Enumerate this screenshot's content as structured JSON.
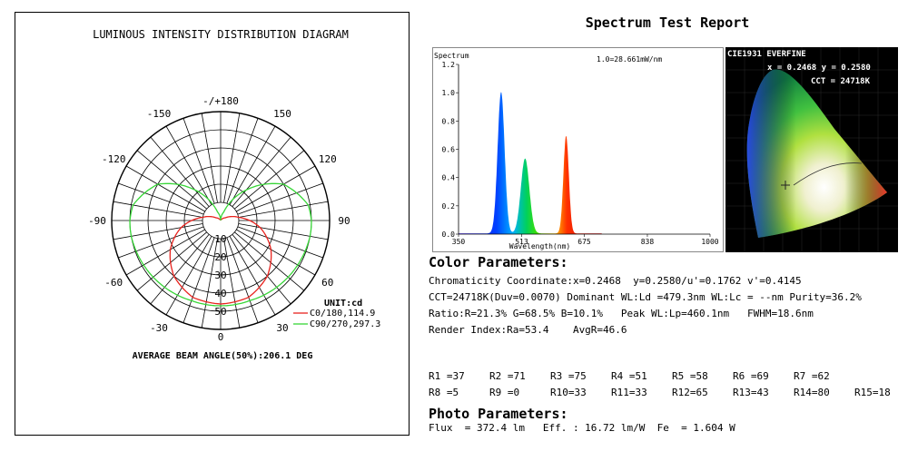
{
  "polar": {
    "title": "LUMINOUS INTENSITY DISTRIBUTION DIAGRAM",
    "angle_labels": [
      {
        "text": "-/+180",
        "deg": 180
      },
      {
        "text": "150",
        "deg": 150
      },
      {
        "text": "-150",
        "deg": -150
      },
      {
        "text": "120",
        "deg": 120
      },
      {
        "text": "-120",
        "deg": -120
      },
      {
        "text": "90",
        "deg": 90
      },
      {
        "text": "-90",
        "deg": -90
      },
      {
        "text": "60",
        "deg": 60
      },
      {
        "text": "-60",
        "deg": -60
      },
      {
        "text": "30",
        "deg": 30
      },
      {
        "text": "-30",
        "deg": -30
      },
      {
        "text": "0",
        "deg": 0
      }
    ],
    "radial_labels": [
      "10",
      "20",
      "30",
      "40",
      "50"
    ],
    "unit_label": "UNIT:cd",
    "legend": [
      {
        "name": "C0/180,114.9",
        "color": "#e8231e"
      },
      {
        "name": "C90/270,297.3",
        "color": "#37d637"
      }
    ],
    "beam_angle_text": "AVERAGE BEAM ANGLE(50%):206.1 DEG"
  },
  "chart_data": [
    {
      "type": "line",
      "title": "LUMINOUS INTENSITY DISTRIBUTION DIAGRAM",
      "angle_range": [
        -180,
        180
      ],
      "r_range": [
        0,
        50
      ],
      "series": [
        {
          "name": "C0/180,114.9",
          "color": "#e8231e",
          "angles": [
            -180,
            -160,
            -140,
            -120,
            -100,
            -90,
            -80,
            -60,
            -40,
            -20,
            0,
            20,
            40,
            60,
            80,
            90,
            100,
            120,
            140,
            160,
            180
          ],
          "values": [
            0,
            0.5,
            1,
            3,
            10,
            16,
            22,
            32,
            40,
            45,
            46,
            45,
            40,
            32,
            22,
            16,
            10,
            3,
            1,
            0.5,
            0
          ]
        },
        {
          "name": "C90/270,297.3",
          "color": "#37d637",
          "angles": [
            -180,
            -160,
            -140,
            -120,
            -100,
            -90,
            -80,
            -60,
            -40,
            -20,
            0,
            20,
            40,
            60,
            80,
            90,
            100,
            120,
            140,
            160,
            180
          ],
          "values": [
            0,
            5,
            22,
            40,
            49,
            50,
            50,
            49,
            48,
            47,
            47,
            47,
            48,
            49,
            50,
            50,
            49,
            40,
            22,
            5,
            0
          ]
        }
      ]
    },
    {
      "type": "line",
      "title": "Spectrum",
      "annotation": "1.0=28.661mW/nm",
      "xlabel": "Wavelength(nm)",
      "xlim": [
        350,
        1000
      ],
      "ylim": [
        0,
        1.2
      ],
      "x_ticks": [
        350,
        513,
        675,
        838,
        1000
      ],
      "y_ticks": [
        0.0,
        0.2,
        0.4,
        0.6,
        0.8,
        1.0,
        1.2
      ],
      "peaks": [
        {
          "center": 460,
          "height": 1.0,
          "width": 9
        },
        {
          "center": 522,
          "height": 0.53,
          "width": 11
        },
        {
          "center": 628,
          "height": 0.69,
          "width": 7
        }
      ]
    },
    {
      "type": "scatter",
      "title": "CIE1931 EVERFINE",
      "point": {
        "x": 0.2468,
        "y": 0.258
      },
      "coord_text": "x = 0.2468 y = 0.2580",
      "cct_text": "CCT = 24718K"
    }
  ],
  "report": {
    "title": "Spectrum Test Report",
    "color_title": "Color Parameters:",
    "color_lines": [
      "Chromaticity Coordinate:x=0.2468  y=0.2580/u'=0.1762 v'=0.4145",
      "CCT=24718K(Duv=0.0070) Dominant WL:Ld =479.3nm WL:Lc = --nm Purity=36.2%",
      "Ratio:R=21.3% G=68.5% B=10.1%   Peak WL:Lp=460.1nm   FWHM=18.6nm",
      "Render Index:Ra=53.4    AvgR=46.6"
    ],
    "r_values": [
      "R1 =37",
      "R2 =71",
      "R3 =75",
      "R4 =51",
      "R5 =58",
      "R6 =69",
      "R7 =62",
      "R8 =5",
      "R9 =0",
      "R10=33",
      "R11=33",
      "R12=65",
      "R13=43",
      "R14=80",
      "R15=18"
    ],
    "photo_title": "Photo Parameters:",
    "photo_line": "Flux  = 372.4 lm   Eff. : 16.72 lm/W  Fe  = 1.604 W"
  }
}
